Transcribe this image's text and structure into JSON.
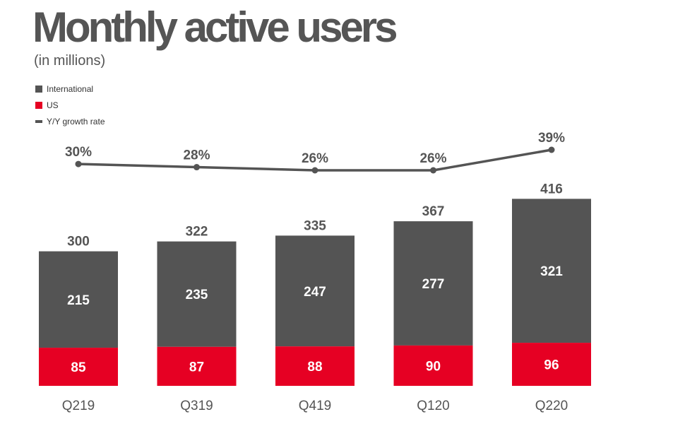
{
  "chart_data": {
    "type": "bar",
    "title": "Monthly active users",
    "subtitle": "(in millions)",
    "categories": [
      "Q219",
      "Q319",
      "Q419",
      "Q120",
      "Q220"
    ],
    "series": [
      {
        "name": "International",
        "values": [
          215,
          235,
          247,
          277,
          321
        ],
        "color": "#545454"
      },
      {
        "name": "US",
        "values": [
          85,
          87,
          88,
          90,
          96
        ],
        "color": "#e60023"
      }
    ],
    "totals": [
      300,
      322,
      335,
      367,
      416
    ],
    "growth": {
      "name": "Y/Y growth rate",
      "values": [
        30,
        28,
        26,
        26,
        39
      ],
      "labels": [
        "30%",
        "28%",
        "26%",
        "26%",
        "39%"
      ],
      "color": "#545454"
    },
    "stacked": true,
    "ylim": [
      0,
      416
    ],
    "grid": false,
    "legend_position": "top-left"
  }
}
